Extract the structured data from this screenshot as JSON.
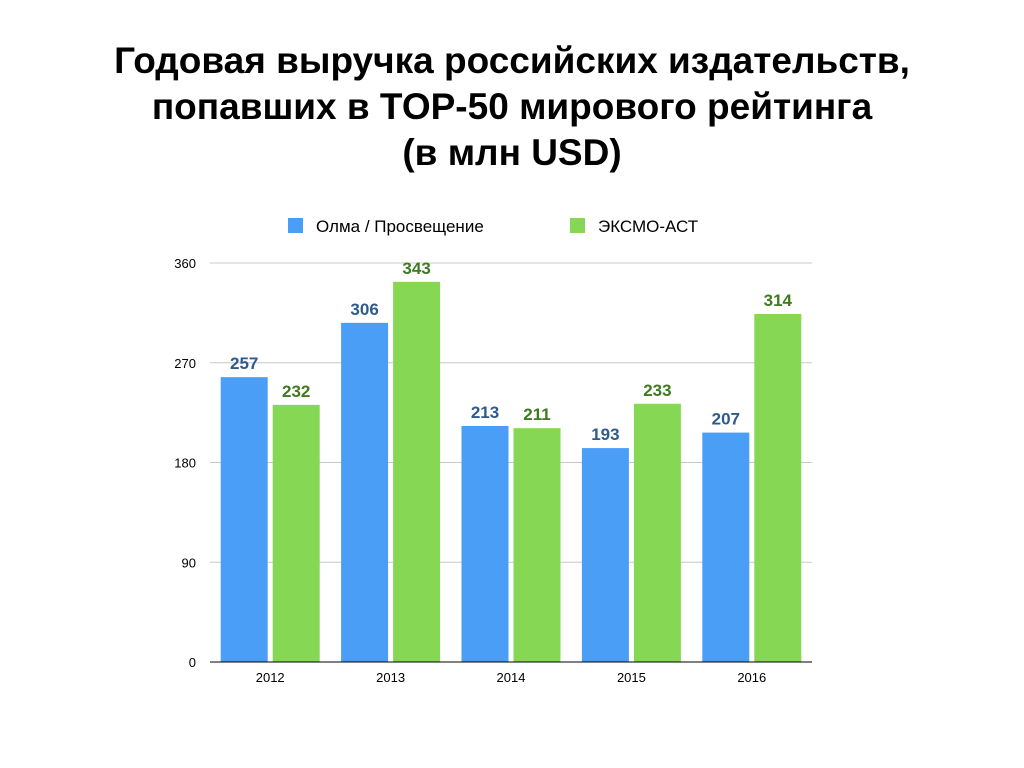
{
  "title_lines": [
    "Годовая выручка российских издательств,",
    "попавших в TOP-50 мирового рейтинга",
    "(в млн USD)"
  ],
  "chart_data": {
    "type": "bar",
    "categories": [
      "2012",
      "2013",
      "2014",
      "2015",
      "2016"
    ],
    "series": [
      {
        "name": "Олма / Просвещение",
        "values": [
          257,
          306,
          213,
          193,
          207
        ],
        "color": "#4A9EF5",
        "label_color": "#2E5A8C"
      },
      {
        "name": "ЭКСМО-АСТ",
        "values": [
          232,
          343,
          211,
          233,
          314
        ],
        "color": "#86D854",
        "label_color": "#3E7A1E"
      }
    ],
    "yticks": [
      0,
      90,
      180,
      270,
      360
    ],
    "ylim": [
      0,
      360
    ],
    "grid": true,
    "legend_position": "top",
    "data_labels": true
  }
}
